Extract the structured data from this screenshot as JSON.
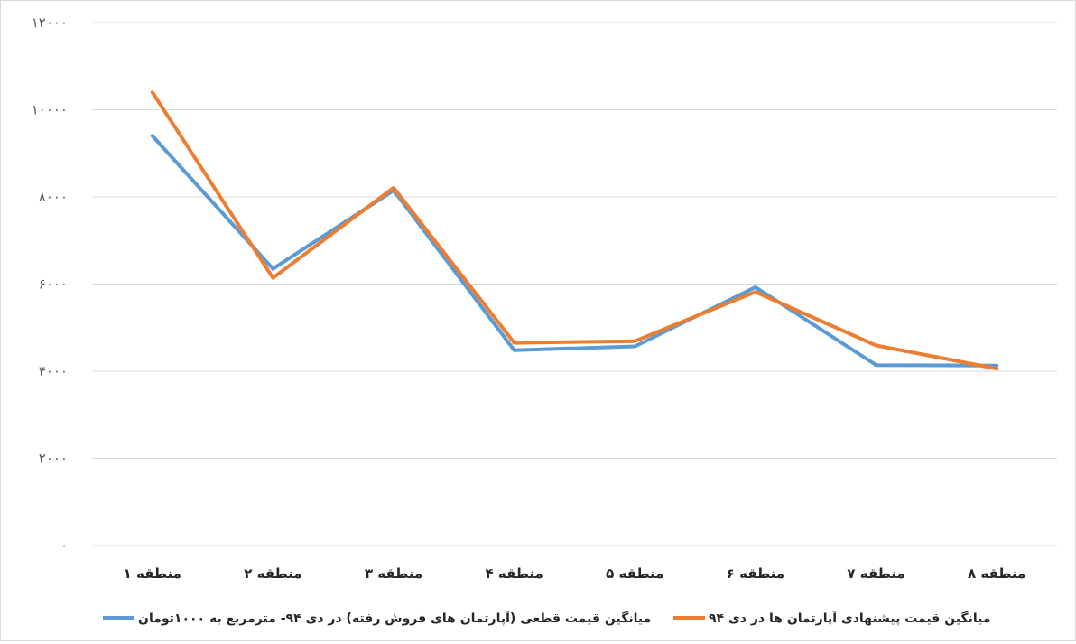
{
  "chart_data": {
    "type": "line",
    "categories": [
      "منطقه ۱",
      "منطقه ۲",
      "منطقه ۳",
      "منطقه ۴",
      "منطقه ۵",
      "منطقه ۶",
      "منطقه ۷",
      "منطقه ۸"
    ],
    "y_ticks": [
      "۰",
      "۲۰۰۰",
      "۴۰۰۰",
      "۶۰۰۰",
      "۸۰۰۰",
      "۱۰۰۰۰",
      "۱۲۰۰۰"
    ],
    "ylim": [
      0,
      12000
    ],
    "grid": true,
    "legend_position": "bottom",
    "series": [
      {
        "name": "میانگین قیمت قطعی (آپارتمان های فروش رفته) در دی ۹۴- مترمربع به ۱۰۰۰تومان",
        "color": "#5b9bd5",
        "values": [
          9400,
          6350,
          8150,
          4480,
          4570,
          5930,
          4140,
          4130
        ]
      },
      {
        "name": "میانگین قیمت پیشنهادی آپارتمان ها در دی ۹۴",
        "color": "#ed7d31",
        "values": [
          10400,
          6140,
          8210,
          4650,
          4690,
          5820,
          4590,
          4060
        ]
      }
    ]
  }
}
